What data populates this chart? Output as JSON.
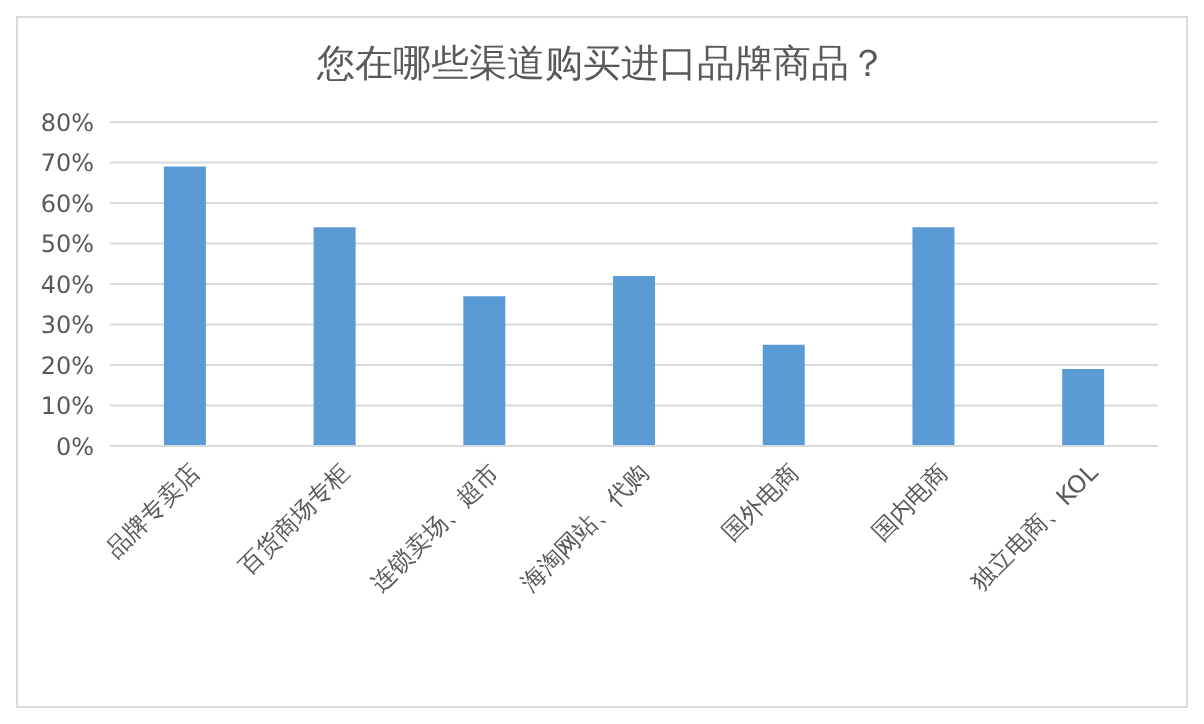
{
  "chart_data": {
    "type": "bar",
    "title": "您在哪些渠道购买进口品牌商品？",
    "categories": [
      "品牌专卖店",
      "百货商场专柜",
      "连锁卖场、超市",
      "海淘网站、代购",
      "国外电商",
      "国内电商",
      "独立电商、KOL"
    ],
    "values": [
      69,
      54,
      37,
      42,
      25,
      54,
      19
    ],
    "color": "#5b9bd5",
    "ylim": [
      0,
      80
    ],
    "yticks": [
      {
        "value": 0,
        "label": "0%"
      },
      {
        "value": 10,
        "label": "10%"
      },
      {
        "value": 20,
        "label": "20%"
      },
      {
        "value": 30,
        "label": "30%"
      },
      {
        "value": 40,
        "label": "40%"
      },
      {
        "value": 50,
        "label": "50%"
      },
      {
        "value": 60,
        "label": "60%"
      },
      {
        "value": 70,
        "label": "70%"
      },
      {
        "value": 80,
        "label": "80%"
      }
    ],
    "grid": "y"
  }
}
